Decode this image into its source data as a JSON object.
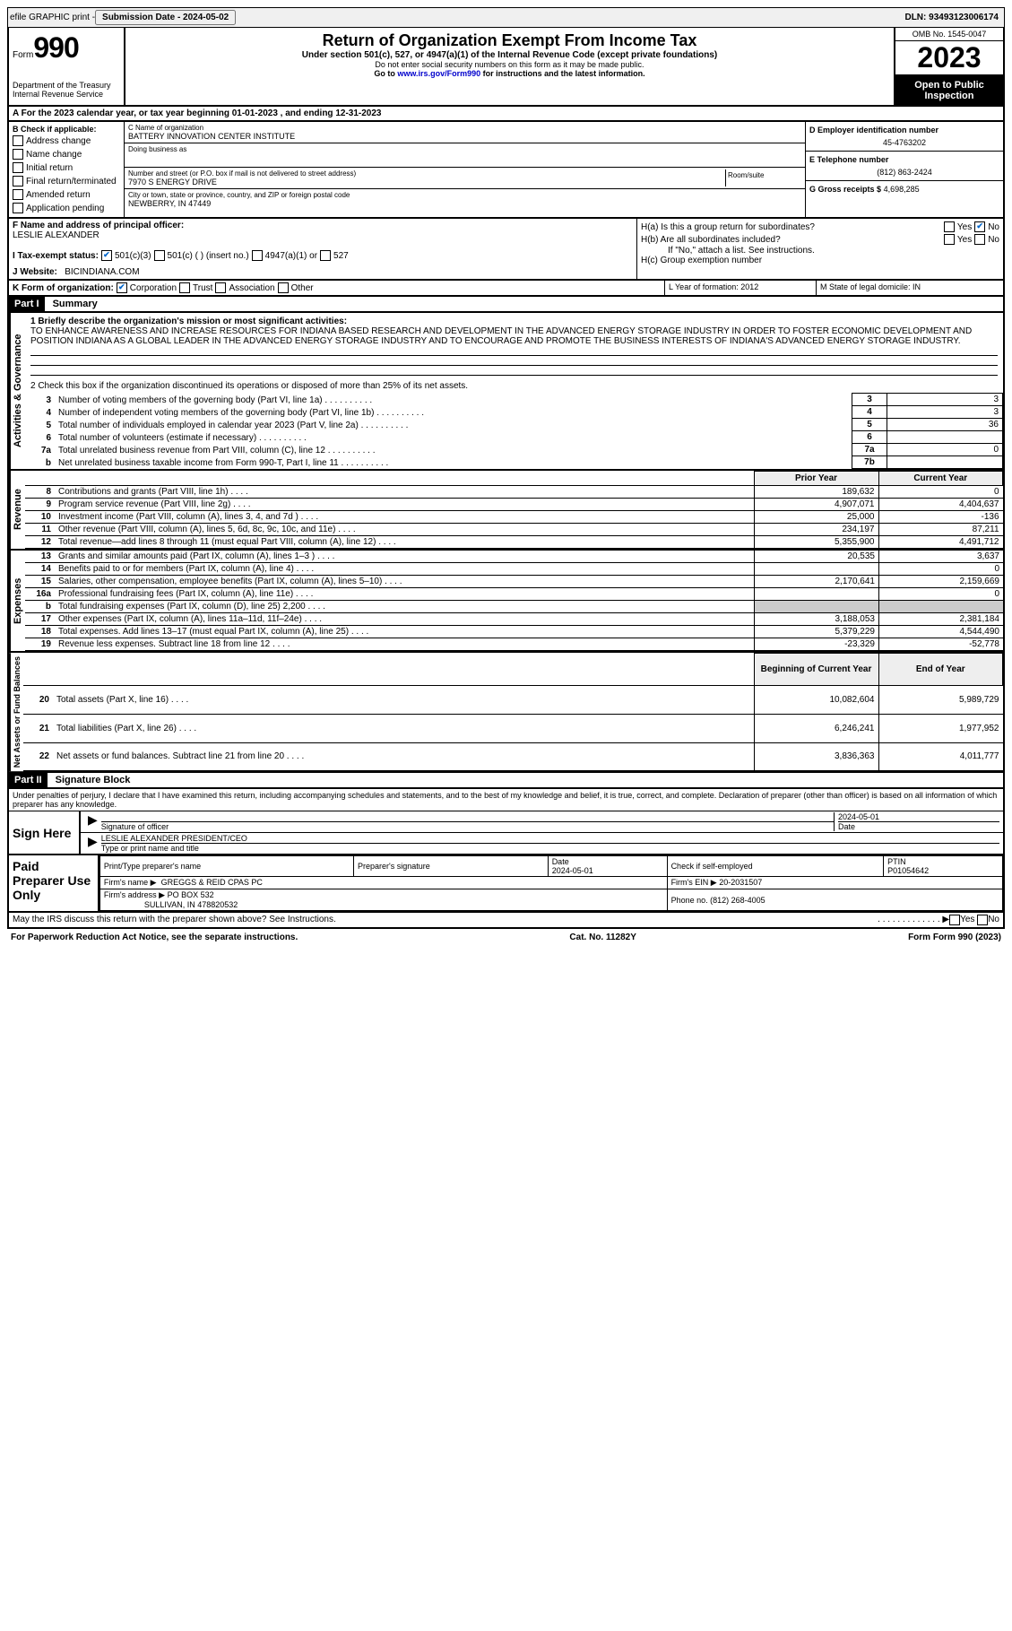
{
  "topbar": {
    "efile": "efile GRAPHIC print -",
    "subdate_label": "Submission Date - 2024-05-02",
    "dln": "DLN: 93493123006174"
  },
  "header": {
    "form_label": "Form",
    "form_no": "990",
    "dept": "Department of the Treasury Internal Revenue Service",
    "title": "Return of Organization Exempt From Income Tax",
    "sub1": "Under section 501(c), 527, or 4947(a)(1) of the Internal Revenue Code (except private foundations)",
    "sub2": "Do not enter social security numbers on this form as it may be made public.",
    "sub3_pre": "Go to ",
    "sub3_link": "www.irs.gov/Form990",
    "sub3_post": " for instructions and the latest information.",
    "omb": "OMB No. 1545-0047",
    "year": "2023",
    "inspect": "Open to Public Inspection"
  },
  "lineA": "A  For the 2023 calendar year, or tax year beginning 01-01-2023    , and ending 12-31-2023",
  "sectionB": {
    "label": "B Check if applicable:",
    "items": [
      "Address change",
      "Name change",
      "Initial return",
      "Final return/terminated",
      "Amended return",
      "Application pending"
    ]
  },
  "sectionC": {
    "name_lbl": "C Name of organization",
    "name": "BATTERY INNOVATION CENTER INSTITUTE",
    "dba_lbl": "Doing business as",
    "street_lbl": "Number and street (or P.O. box if mail is not delivered to street address)",
    "room_lbl": "Room/suite",
    "street": "7970 S ENERGY DRIVE",
    "city_lbl": "City or town, state or province, country, and ZIP or foreign postal code",
    "city": "NEWBERRY, IN  47449"
  },
  "sectionD": {
    "ein_lbl": "D Employer identification number",
    "ein": "45-4763202",
    "phone_lbl": "E Telephone number",
    "phone": "(812) 863-2424",
    "gross_lbl": "G Gross receipts $",
    "gross": "4,698,285"
  },
  "sectionF": {
    "lbl": "F  Name and address of principal officer:",
    "name": "LESLIE ALEXANDER"
  },
  "sectionH": {
    "a": "H(a)  Is this a group return for subordinates?",
    "b": "H(b)  Are all subordinates included?",
    "b_note": "If \"No,\" attach a list. See instructions.",
    "c": "H(c)  Group exemption number"
  },
  "lineI": {
    "lbl": "I     Tax-exempt status:",
    "o1": "501(c)(3)",
    "o2": "501(c) (   ) (insert no.)",
    "o3": "4947(a)(1) or",
    "o4": "527"
  },
  "lineJ": {
    "lbl": "J    Website:",
    "val": "BICINDIANA.COM"
  },
  "lineK": {
    "lbl": "K Form of organization:",
    "o1": "Corporation",
    "o2": "Trust",
    "o3": "Association",
    "o4": "Other"
  },
  "lineL": "L Year of formation: 2012",
  "lineM": "M State of legal domicile: IN",
  "part1": {
    "label": "Part I",
    "title": "Summary"
  },
  "summary": {
    "side_ag": "Activities & Governance",
    "q1_lbl": "1   Briefly describe the organization's mission or most significant activities:",
    "q1_text": "TO ENHANCE AWARENESS AND INCREASE RESOURCES FOR INDIANA BASED RESEARCH AND DEVELOPMENT IN THE ADVANCED ENERGY STORAGE INDUSTRY IN ORDER TO FOSTER ECONOMIC DEVELOPMENT AND POSITION INDIANA AS A GLOBAL LEADER IN THE ADVANCED ENERGY STORAGE INDUSTRY AND TO ENCOURAGE AND PROMOTE THE BUSINESS INTERESTS OF INDIANA'S ADVANCED ENERGY STORAGE INDUSTRY.",
    "q2": "2   Check this box      if the organization discontinued its operations or disposed of more than 25% of its net assets.",
    "rows": [
      {
        "n": "3",
        "d": "Number of voting members of the governing body (Part VI, line 1a)",
        "box": "3",
        "v": "3"
      },
      {
        "n": "4",
        "d": "Number of independent voting members of the governing body (Part VI, line 1b)",
        "box": "4",
        "v": "3"
      },
      {
        "n": "5",
        "d": "Total number of individuals employed in calendar year 2023 (Part V, line 2a)",
        "box": "5",
        "v": "36"
      },
      {
        "n": "6",
        "d": "Total number of volunteers (estimate if necessary)",
        "box": "6",
        "v": ""
      },
      {
        "n": "7a",
        "d": "Total unrelated business revenue from Part VIII, column (C), line 12",
        "box": "7a",
        "v": "0"
      },
      {
        "n": "b",
        "d": "Net unrelated business taxable income from Form 990-T, Part I, line 11",
        "box": "7b",
        "v": ""
      }
    ],
    "side_rev": "Revenue",
    "prior_h": "Prior Year",
    "curr_h": "Current Year",
    "rev_rows": [
      {
        "n": "8",
        "d": "Contributions and grants (Part VIII, line 1h)",
        "p": "189,632",
        "c": "0"
      },
      {
        "n": "9",
        "d": "Program service revenue (Part VIII, line 2g)",
        "p": "4,907,071",
        "c": "4,404,637"
      },
      {
        "n": "10",
        "d": "Investment income (Part VIII, column (A), lines 3, 4, and 7d )",
        "p": "25,000",
        "c": "-136"
      },
      {
        "n": "11",
        "d": "Other revenue (Part VIII, column (A), lines 5, 6d, 8c, 9c, 10c, and 11e)",
        "p": "234,197",
        "c": "87,211"
      },
      {
        "n": "12",
        "d": "Total revenue—add lines 8 through 11 (must equal Part VIII, column (A), line 12)",
        "p": "5,355,900",
        "c": "4,491,712"
      }
    ],
    "side_exp": "Expenses",
    "exp_rows": [
      {
        "n": "13",
        "d": "Grants and similar amounts paid (Part IX, column (A), lines 1–3 )",
        "p": "20,535",
        "c": "3,637"
      },
      {
        "n": "14",
        "d": "Benefits paid to or for members (Part IX, column (A), line 4)",
        "p": "",
        "c": "0"
      },
      {
        "n": "15",
        "d": "Salaries, other compensation, employee benefits (Part IX, column (A), lines 5–10)",
        "p": "2,170,641",
        "c": "2,159,669"
      },
      {
        "n": "16a",
        "d": "Professional fundraising fees (Part IX, column (A), line 11e)",
        "p": "",
        "c": "0"
      },
      {
        "n": "b",
        "d": "Total fundraising expenses (Part IX, column (D), line 25) 2,200",
        "p": "SHADE",
        "c": "SHADE"
      },
      {
        "n": "17",
        "d": "Other expenses (Part IX, column (A), lines 11a–11d, 11f–24e)",
        "p": "3,188,053",
        "c": "2,381,184"
      },
      {
        "n": "18",
        "d": "Total expenses. Add lines 13–17 (must equal Part IX, column (A), line 25)",
        "p": "5,379,229",
        "c": "4,544,490"
      },
      {
        "n": "19",
        "d": "Revenue less expenses. Subtract line 18 from line 12",
        "p": "-23,329",
        "c": "-52,778"
      }
    ],
    "side_na": "Net Assets or Fund Balances",
    "boy_h": "Beginning of Current Year",
    "eoy_h": "End of Year",
    "na_rows": [
      {
        "n": "20",
        "d": "Total assets (Part X, line 16)",
        "p": "10,082,604",
        "c": "5,989,729"
      },
      {
        "n": "21",
        "d": "Total liabilities (Part X, line 26)",
        "p": "6,246,241",
        "c": "1,977,952"
      },
      {
        "n": "22",
        "d": "Net assets or fund balances. Subtract line 21 from line 20",
        "p": "3,836,363",
        "c": "4,011,777"
      }
    ]
  },
  "part2": {
    "label": "Part II",
    "title": "Signature Block"
  },
  "sig": {
    "penalty": "Under penalties of perjury, I declare that I have examined this return, including accompanying schedules and statements, and to the best of my knowledge and belief, it is true, correct, and complete. Declaration of preparer (other than officer) is based on all information of which preparer has any knowledge.",
    "sign_here": "Sign Here",
    "sig_officer_lbl": "Signature of officer",
    "date": "2024-05-01",
    "date_lbl": "Date",
    "officer_name": "LESLIE ALEXANDER  PRESIDENT/CEO",
    "name_lbl": "Type or print name and title"
  },
  "prep": {
    "label": "Paid Preparer Use Only",
    "h1": "Print/Type preparer's name",
    "h2": "Preparer's signature",
    "h3": "Date",
    "h3v": "2024-05-01",
    "h4": "Check       if self-employed",
    "h5_lbl": "PTIN",
    "h5": "P01054642",
    "firm_lbl": "Firm's name",
    "firm": "GREGGS & REID CPAS PC",
    "ein_lbl": "Firm's EIN",
    "ein": "20-2031507",
    "addr_lbl": "Firm's address",
    "addr1": "PO BOX 532",
    "addr2": "SULLIVAN, IN  478820532",
    "ph_lbl": "Phone no.",
    "ph": "(812) 268-4005"
  },
  "discuss": "May the IRS discuss this return with the preparer shown above? See Instructions.",
  "footer": {
    "pra": "For Paperwork Reduction Act Notice, see the separate instructions.",
    "cat": "Cat. No. 11282Y",
    "form": "Form 990 (2023)"
  }
}
